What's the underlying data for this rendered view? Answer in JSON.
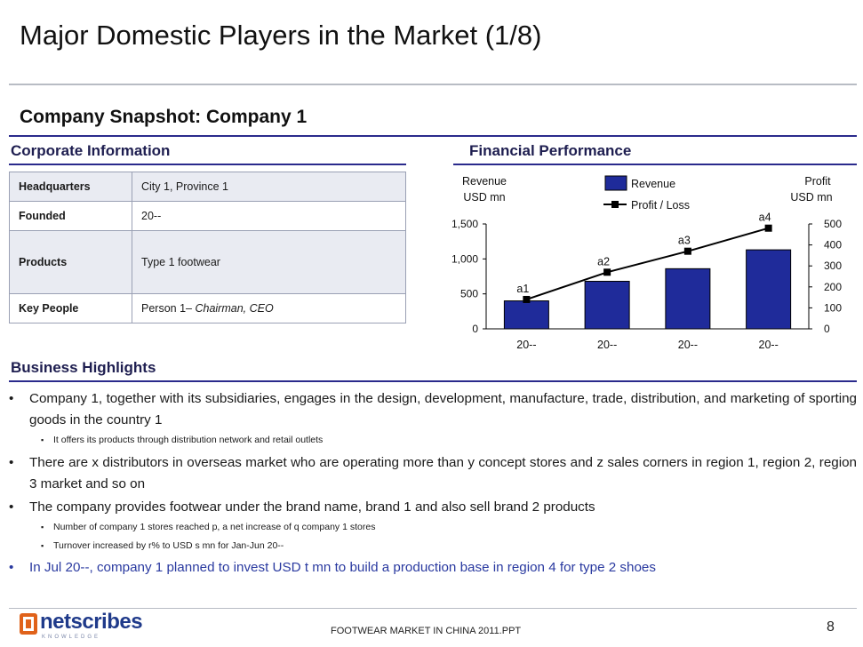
{
  "title": "Major Domestic Players in the Market (1/8)",
  "snapshot": "Company Snapshot: Company 1",
  "corporate": {
    "heading": "Corporate Information",
    "rows": [
      {
        "label": "Headquarters",
        "value": "City 1, Province 1"
      },
      {
        "label": "Founded",
        "value": "20--"
      },
      {
        "label": "Products",
        "value": "Type 1 footwear"
      },
      {
        "label": "Key People",
        "value": "Person 1– ",
        "value_italic": "Chairman, CEO"
      }
    ]
  },
  "financial": {
    "heading": "Financial Performance"
  },
  "chart_data": {
    "type": "bar",
    "categories": [
      "20--",
      "20--",
      "20--",
      "20--"
    ],
    "series": [
      {
        "name": "Revenue",
        "kind": "bar",
        "axis": "left",
        "values": [
          400,
          680,
          860,
          1130
        ],
        "color": "#1f2b9a"
      },
      {
        "name": "Profit / Loss",
        "kind": "line",
        "axis": "right",
        "values": [
          140,
          270,
          370,
          480
        ],
        "labels": [
          "a1",
          "a2",
          "a3",
          "a4"
        ],
        "color": "#000000"
      }
    ],
    "left_axis": {
      "label": [
        "Revenue",
        "USD mn"
      ],
      "ticks": [
        "0",
        "500",
        "1,000",
        "1,500"
      ],
      "tick_values": [
        0,
        500,
        1000,
        1500
      ],
      "ylim": [
        0,
        1500
      ]
    },
    "right_axis": {
      "label": [
        "Profit",
        "USD mn"
      ],
      "ticks": [
        "0",
        "100",
        "200",
        "300",
        "400",
        "500"
      ],
      "tick_values": [
        0,
        100,
        200,
        300,
        400,
        500
      ],
      "ylim": [
        0,
        500
      ]
    },
    "legend": {
      "position": "top-center"
    }
  },
  "highlights": {
    "heading": "Business Highlights",
    "b1": "Company 1, together with its subsidiaries, engages in the design, development, manufacture, trade, distribution, and marketing of sporting goods in the country 1",
    "b1_sub1": "It offers its products through distribution network and retail outlets",
    "b2": "There are x distributors in overseas market who are operating more than y concept stores and z sales corners in region 1, region 2, region 3 market and so on",
    "b3": "The company provides footwear under the brand name, brand 1 and also sell brand 2 products",
    "b3_sub1": "Number of  company 1 stores reached p, a net increase of q company 1 stores",
    "b3_sub2": "Turnover increased by r% to USD s mn for Jan-Jun 20--",
    "b4": "In Jul 20--, company 1 planned to invest USD t mn to build a production base in region 4 for type 2 shoes"
  },
  "footer": {
    "logo": "netscribes",
    "logo_tagline": "KNOWLEDGE",
    "text": "FOOTWEAR MARKET IN CHINA 2011.PPT",
    "page": "8"
  },
  "colors": {
    "accent": "#2a2a8c",
    "bar": "#1f2b9a",
    "logo_orange": "#e0621a",
    "logo_blue": "#1f3a8a"
  }
}
